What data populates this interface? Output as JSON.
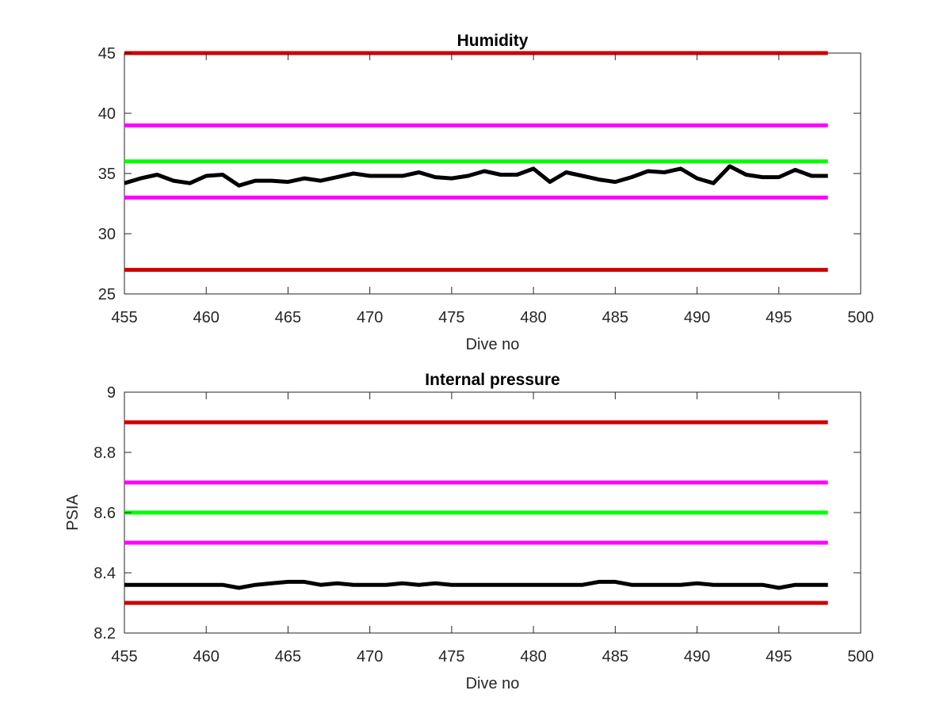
{
  "chart_data": [
    {
      "type": "line",
      "title": "Humidity",
      "xlabel": "Dive no",
      "ylabel": "",
      "xlim": [
        455,
        500
      ],
      "ylim": [
        25,
        45
      ],
      "xticks": [
        "455",
        "460",
        "465",
        "470",
        "475",
        "480",
        "485",
        "490",
        "495",
        "500"
      ],
      "yticks": [
        "25",
        "30",
        "35",
        "40",
        "45"
      ],
      "grid": false,
      "series": [
        {
          "color": "#cc0000",
          "x": [
            455,
            498
          ],
          "values": [
            45,
            45
          ]
        },
        {
          "color": "#cc0000",
          "x": [
            455,
            498
          ],
          "values": [
            27,
            27
          ]
        },
        {
          "color": "#ff00ff",
          "x": [
            455,
            498
          ],
          "values": [
            39,
            39
          ]
        },
        {
          "color": "#ff00ff",
          "x": [
            455,
            498
          ],
          "values": [
            33,
            33
          ]
        },
        {
          "color": "#00ff00",
          "x": [
            455,
            498
          ],
          "values": [
            36,
            36
          ]
        },
        {
          "color": "#000000",
          "x": [
            455,
            456,
            457,
            458,
            459,
            460,
            461,
            462,
            463,
            464,
            465,
            466,
            467,
            468,
            469,
            470,
            471,
            472,
            473,
            474,
            475,
            476,
            477,
            478,
            479,
            480,
            481,
            482,
            483,
            484,
            485,
            486,
            487,
            488,
            489,
            490,
            491,
            492,
            493,
            494,
            495,
            496,
            497,
            498
          ],
          "values": [
            34.2,
            34.6,
            34.9,
            34.4,
            34.2,
            34.8,
            34.9,
            34.0,
            34.4,
            34.4,
            34.3,
            34.6,
            34.4,
            34.7,
            35.0,
            34.8,
            34.8,
            34.8,
            35.1,
            34.7,
            34.6,
            34.8,
            35.2,
            34.9,
            34.9,
            35.4,
            34.3,
            35.1,
            34.8,
            34.5,
            34.3,
            34.7,
            35.2,
            35.1,
            35.4,
            34.6,
            34.2,
            35.6,
            34.9,
            34.7,
            34.7,
            35.3,
            34.8,
            34.8
          ]
        }
      ]
    },
    {
      "type": "line",
      "title": "Internal pressure",
      "xlabel": "Dive no",
      "ylabel": "PSIA",
      "xlim": [
        455,
        500
      ],
      "ylim": [
        8.2,
        9.0
      ],
      "xticks": [
        "455",
        "460",
        "465",
        "470",
        "475",
        "480",
        "485",
        "490",
        "495",
        "500"
      ],
      "yticks": [
        "8.2",
        "8.4",
        "8.6",
        "8.8",
        "9"
      ],
      "grid": false,
      "series": [
        {
          "color": "#cc0000",
          "x": [
            455,
            498
          ],
          "values": [
            8.9,
            8.9
          ]
        },
        {
          "color": "#cc0000",
          "x": [
            455,
            498
          ],
          "values": [
            8.3,
            8.3
          ]
        },
        {
          "color": "#ff00ff",
          "x": [
            455,
            498
          ],
          "values": [
            8.7,
            8.7
          ]
        },
        {
          "color": "#ff00ff",
          "x": [
            455,
            498
          ],
          "values": [
            8.5,
            8.5
          ]
        },
        {
          "color": "#00ff00",
          "x": [
            455,
            498
          ],
          "values": [
            8.6,
            8.6
          ]
        },
        {
          "color": "#000000",
          "x": [
            455,
            456,
            457,
            458,
            459,
            460,
            461,
            462,
            463,
            464,
            465,
            466,
            467,
            468,
            469,
            470,
            471,
            472,
            473,
            474,
            475,
            476,
            477,
            478,
            479,
            480,
            481,
            482,
            483,
            484,
            485,
            486,
            487,
            488,
            489,
            490,
            491,
            492,
            493,
            494,
            495,
            496,
            497,
            498
          ],
          "values": [
            8.36,
            8.36,
            8.36,
            8.36,
            8.36,
            8.36,
            8.36,
            8.35,
            8.36,
            8.365,
            8.37,
            8.37,
            8.36,
            8.365,
            8.36,
            8.36,
            8.36,
            8.365,
            8.36,
            8.365,
            8.36,
            8.36,
            8.36,
            8.36,
            8.36,
            8.36,
            8.36,
            8.36,
            8.36,
            8.37,
            8.37,
            8.36,
            8.36,
            8.36,
            8.36,
            8.365,
            8.36,
            8.36,
            8.36,
            8.36,
            8.35,
            8.36,
            8.36,
            8.36
          ]
        }
      ]
    }
  ]
}
